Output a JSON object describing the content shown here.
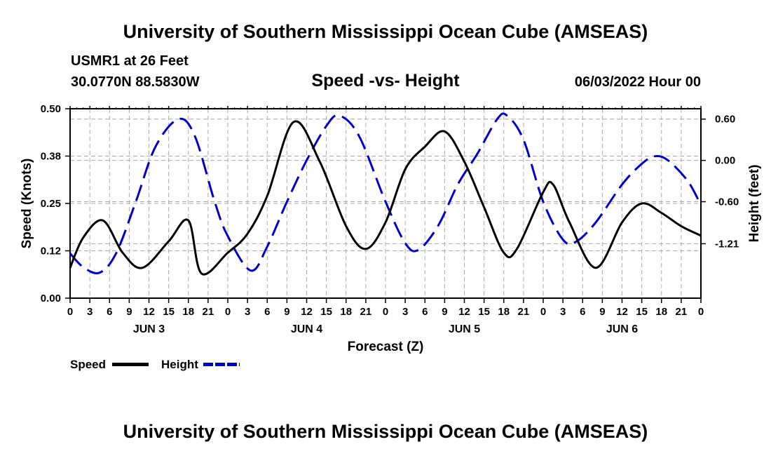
{
  "page": {
    "title_top": "University of Southern Mississippi Ocean Cube (AMSEAS)",
    "title_bottom": "University of Southern Mississippi Ocean Cube (AMSEAS)",
    "station": "USMR1 at 26 Feet",
    "coords": "30.0770N  88.5830W",
    "chart_subtitle": "Speed -vs- Height",
    "datetime": "06/03/2022 Hour 00"
  },
  "legend": {
    "speed_label": "Speed",
    "height_label": "Height"
  },
  "colors": {
    "speed": "#000000",
    "height": "#0000cc",
    "grid": "#aaaaaa"
  },
  "chart_data": {
    "type": "line",
    "title": "Speed -vs- Height",
    "xlabel": "Forecast (Z)",
    "ylabel": "Speed (Knots)",
    "y2label": "Height (feet)",
    "x_range_hours": [
      0,
      96
    ],
    "x_tick_labels": [
      "0",
      "3",
      "6",
      "9",
      "12",
      "15",
      "18",
      "21",
      "0",
      "3",
      "6",
      "9",
      "12",
      "15",
      "18",
      "21",
      "0",
      "3",
      "6",
      "9",
      "12",
      "15",
      "18",
      "21",
      "0",
      "3",
      "6",
      "9",
      "12",
      "15",
      "18",
      "21",
      "0"
    ],
    "day_labels": [
      {
        "label": "JUN 3",
        "hour": 12
      },
      {
        "label": "JUN 4",
        "hour": 36
      },
      {
        "label": "JUN 5",
        "hour": 60
      },
      {
        "label": "JUN 6",
        "hour": 84
      }
    ],
    "ylim": [
      0,
      0.5
    ],
    "y_ticks": [
      "0.00",
      "0.12",
      "0.25",
      "0.38",
      "0.50"
    ],
    "y_tick_values": [
      0,
      0.125,
      0.25,
      0.375,
      0.5
    ],
    "y2lim": [
      -2.0,
      0.75
    ],
    "y2_ticks": [
      "-1.21",
      "-0.60",
      "0.00",
      "0.60"
    ],
    "y2_tick_values": [
      -1.21,
      -0.6,
      0.0,
      0.6
    ],
    "grid": true,
    "series": [
      {
        "name": "Speed",
        "axis": "left",
        "style": "solid",
        "points": [
          [
            0,
            0.08
          ],
          [
            2,
            0.16
          ],
          [
            5,
            0.205
          ],
          [
            8,
            0.12
          ],
          [
            11,
            0.08
          ],
          [
            15,
            0.15
          ],
          [
            18,
            0.205
          ],
          [
            20,
            0.065
          ],
          [
            24,
            0.12
          ],
          [
            27,
            0.17
          ],
          [
            30,
            0.27
          ],
          [
            34,
            0.465
          ],
          [
            38,
            0.36
          ],
          [
            42,
            0.19
          ],
          [
            45,
            0.13
          ],
          [
            48,
            0.2
          ],
          [
            51,
            0.34
          ],
          [
            54,
            0.4
          ],
          [
            57,
            0.44
          ],
          [
            60,
            0.36
          ],
          [
            63,
            0.24
          ],
          [
            66,
            0.12
          ],
          [
            68,
            0.13
          ],
          [
            72,
            0.28
          ],
          [
            73.5,
            0.3
          ],
          [
            76,
            0.2
          ],
          [
            80,
            0.08
          ],
          [
            84,
            0.2
          ],
          [
            87,
            0.25
          ],
          [
            90,
            0.225
          ],
          [
            93,
            0.19
          ],
          [
            96,
            0.165
          ]
        ]
      },
      {
        "name": "Height",
        "axis": "right",
        "style": "dashed",
        "points": [
          [
            0,
            -1.35
          ],
          [
            2,
            -1.55
          ],
          [
            4.5,
            -1.63
          ],
          [
            7,
            -1.35
          ],
          [
            10,
            -0.6
          ],
          [
            13,
            0.2
          ],
          [
            16.5,
            0.6
          ],
          [
            19,
            0.35
          ],
          [
            22,
            -0.6
          ],
          [
            24,
            -1.1
          ],
          [
            27.5,
            -1.6
          ],
          [
            30,
            -1.25
          ],
          [
            33,
            -0.6
          ],
          [
            36,
            0.0
          ],
          [
            39,
            0.5
          ],
          [
            41,
            0.65
          ],
          [
            44,
            0.35
          ],
          [
            48,
            -0.6
          ],
          [
            51,
            -1.2
          ],
          [
            53,
            -1.3
          ],
          [
            56,
            -0.95
          ],
          [
            59,
            -0.35
          ],
          [
            62,
            0.1
          ],
          [
            65,
            0.6
          ],
          [
            66.5,
            0.65
          ],
          [
            69,
            0.3
          ],
          [
            72,
            -0.6
          ],
          [
            75,
            -1.15
          ],
          [
            77,
            -1.18
          ],
          [
            80,
            -0.9
          ],
          [
            84,
            -0.35
          ],
          [
            87,
            -0.05
          ],
          [
            89,
            0.06
          ],
          [
            91,
            0.0
          ],
          [
            94,
            -0.3
          ],
          [
            96,
            -0.65
          ]
        ]
      }
    ]
  }
}
